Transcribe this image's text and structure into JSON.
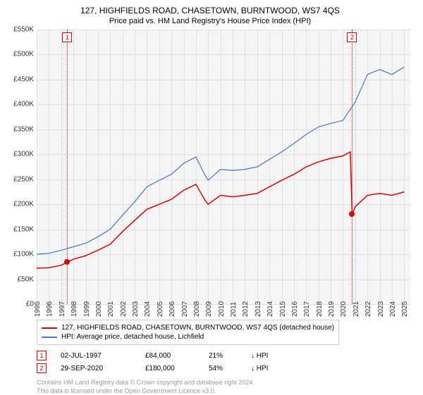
{
  "title": "127, HIGHFIELDS ROAD, CHASETOWN, BURNTWOOD, WS7 4QS",
  "subtitle": "Price paid vs. HM Land Registry's House Price Index (HPI)",
  "chart": {
    "type": "line",
    "background_color": "#f5f5f5",
    "grid_color": "#e0e0e0",
    "axis_label_fontsize": 10,
    "x": {
      "min": 1995,
      "max": 2025.5,
      "tick_step": 1,
      "label_step": 1
    },
    "y": {
      "min": 0,
      "max": 550000,
      "tick_step": 50000
    },
    "y_tick_labels": [
      "£0",
      "£50K",
      "£100K",
      "£150K",
      "£200K",
      "£250K",
      "£300K",
      "£350K",
      "£400K",
      "£450K",
      "£500K",
      "£550K"
    ],
    "series": [
      {
        "name": "price_paid",
        "label": "127, HIGHFIELDS ROAD, CHASETOWN, BURNTWOOD, WS7 4QS (detached house)",
        "color": "#d60000",
        "line_width": 1.5,
        "points": [
          [
            1995,
            72000
          ],
          [
            1996,
            73000
          ],
          [
            1997,
            78000
          ],
          [
            1997.5,
            84000
          ],
          [
            1998,
            90000
          ],
          [
            1999,
            97000
          ],
          [
            2000,
            108000
          ],
          [
            2001,
            120000
          ],
          [
            2002,
            145000
          ],
          [
            2003,
            168000
          ],
          [
            2004,
            190000
          ],
          [
            2005,
            200000
          ],
          [
            2006,
            210000
          ],
          [
            2007,
            228000
          ],
          [
            2008,
            240000
          ],
          [
            2008.7,
            210000
          ],
          [
            2009,
            200000
          ],
          [
            2010,
            218000
          ],
          [
            2011,
            215000
          ],
          [
            2012,
            218000
          ],
          [
            2013,
            222000
          ],
          [
            2014,
            235000
          ],
          [
            2015,
            248000
          ],
          [
            2016,
            260000
          ],
          [
            2017,
            275000
          ],
          [
            2018,
            285000
          ],
          [
            2019,
            292000
          ],
          [
            2020,
            297000
          ],
          [
            2020.6,
            305000
          ],
          [
            2020.75,
            180000
          ],
          [
            2021,
            195000
          ],
          [
            2022,
            218000
          ],
          [
            2023,
            222000
          ],
          [
            2024,
            218000
          ],
          [
            2025,
            225000
          ]
        ]
      },
      {
        "name": "hpi",
        "label": "HPI: Average price, detached house, Lichfield",
        "color": "#4a74c9",
        "line_width": 1.2,
        "points": [
          [
            1995,
            100000
          ],
          [
            1996,
            102000
          ],
          [
            1997,
            108000
          ],
          [
            1998,
            115000
          ],
          [
            1999,
            122000
          ],
          [
            2000,
            135000
          ],
          [
            2001,
            150000
          ],
          [
            2002,
            178000
          ],
          [
            2003,
            205000
          ],
          [
            2004,
            235000
          ],
          [
            2005,
            248000
          ],
          [
            2006,
            260000
          ],
          [
            2007,
            282000
          ],
          [
            2008,
            295000
          ],
          [
            2008.7,
            260000
          ],
          [
            2009,
            248000
          ],
          [
            2010,
            270000
          ],
          [
            2011,
            268000
          ],
          [
            2012,
            270000
          ],
          [
            2013,
            275000
          ],
          [
            2014,
            290000
          ],
          [
            2015,
            305000
          ],
          [
            2016,
            322000
          ],
          [
            2017,
            340000
          ],
          [
            2018,
            355000
          ],
          [
            2019,
            362000
          ],
          [
            2020,
            368000
          ],
          [
            2021,
            405000
          ],
          [
            2022,
            460000
          ],
          [
            2023,
            470000
          ],
          [
            2024,
            460000
          ],
          [
            2025,
            475000
          ]
        ]
      }
    ],
    "markers": [
      {
        "n": "1",
        "year": 1997.5,
        "price": 84000,
        "color": "#d60000",
        "date": "02-JUL-1997",
        "price_label": "£84,000",
        "pct": "21%",
        "hpi_note": "↓ HPI"
      },
      {
        "n": "2",
        "year": 2020.75,
        "price": 180000,
        "color": "#d60000",
        "date": "29-SEP-2020",
        "price_label": "£180,000",
        "pct": "54%",
        "hpi_note": "↓ HPI"
      }
    ]
  },
  "attribution": {
    "line1": "Contains HM Land Registry data © Crown copyright and database right 2024.",
    "line2": "This data is licensed under the Open Government Licence v3.0."
  }
}
